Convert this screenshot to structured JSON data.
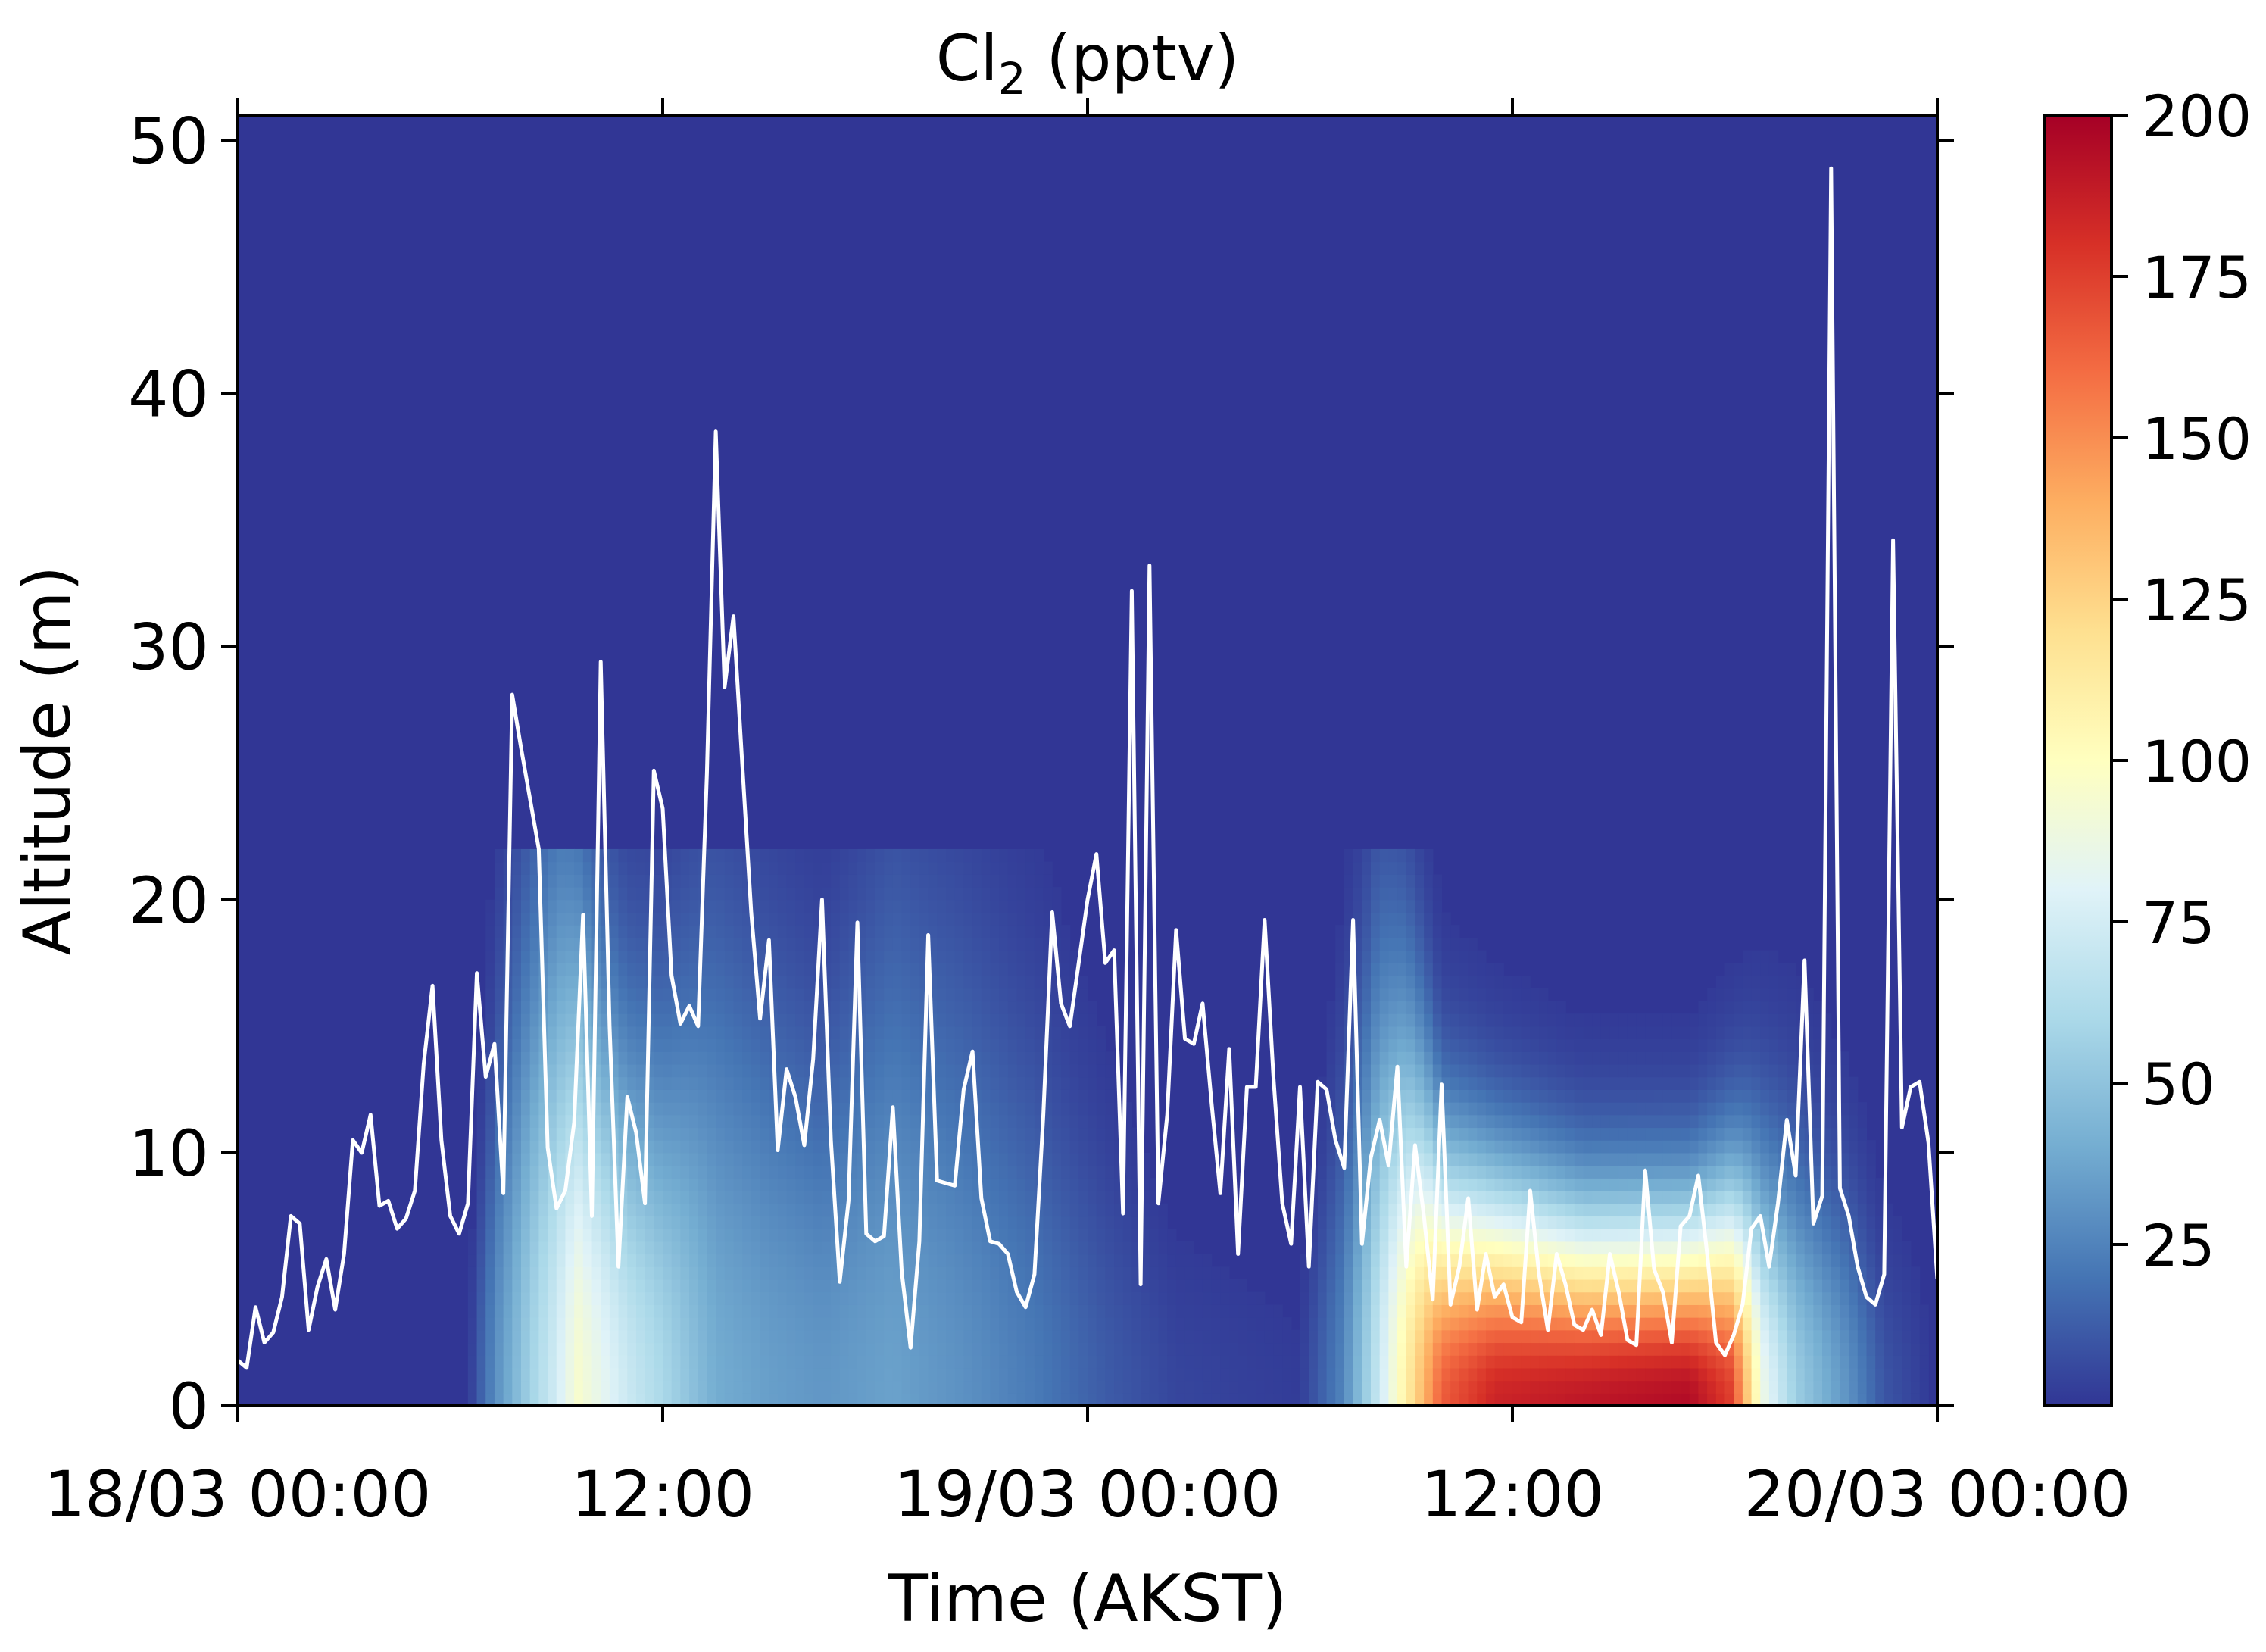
{
  "chart_data": {
    "type": "heatmap",
    "title": "Cl",
    "title_subscript": "2",
    "title_suffix": " (pptv)",
    "xlabel": "Time (AKST)",
    "ylabel": "Altitude (m)",
    "x_tick_labels": [
      "18/03 00:00",
      "12:00",
      "19/03 00:00",
      "12:00",
      "20/03 00:00"
    ],
    "x_ticks_hours": [
      0,
      12,
      24,
      36,
      48
    ],
    "xlim_hours": [
      0,
      48
    ],
    "ylim": [
      0,
      51
    ],
    "y_ticks": [
      0,
      10,
      20,
      30,
      40,
      50
    ],
    "colorbar": {
      "colormap": "RdYlBu_r",
      "range": [
        0,
        200
      ],
      "ticks": [
        25,
        50,
        75,
        100,
        125,
        150,
        175,
        200
      ],
      "colors": [
        "#313695",
        "#4575b4",
        "#74add1",
        "#abd9e9",
        "#e0f3f8",
        "#ffffbf",
        "#fee090",
        "#fdae61",
        "#f46d43",
        "#d73027",
        "#a50026"
      ]
    },
    "heatmap_columns": [
      {
        "t": 0.0,
        "v0": 0,
        "h": 5
      },
      {
        "t": 6.5,
        "v0": 0,
        "h": 5
      },
      {
        "t": 7.3,
        "v0": 30,
        "h": 14
      },
      {
        "t": 8.2,
        "v0": 55,
        "h": 18
      },
      {
        "t": 9.0,
        "v0": 75,
        "h": 20
      },
      {
        "t": 9.6,
        "v0": 95,
        "h": 18
      },
      {
        "t": 10.2,
        "v0": 85,
        "h": 16
      },
      {
        "t": 11.0,
        "v0": 72,
        "h": 14
      },
      {
        "t": 12.0,
        "v0": 60,
        "h": 14
      },
      {
        "t": 13.5,
        "v0": 40,
        "h": 18
      },
      {
        "t": 15.0,
        "v0": 35,
        "h": 16
      },
      {
        "t": 16.5,
        "v0": 32,
        "h": 14
      },
      {
        "t": 18.5,
        "v0": 36,
        "h": 19
      },
      {
        "t": 20.5,
        "v0": 30,
        "h": 17
      },
      {
        "t": 22.5,
        "v0": 22,
        "h": 14
      },
      {
        "t": 24.5,
        "v0": 12,
        "h": 10
      },
      {
        "t": 26.5,
        "v0": 5,
        "h": 6
      },
      {
        "t": 30.0,
        "v0": 2,
        "h": 5
      },
      {
        "t": 31.2,
        "v0": 25,
        "h": 12
      },
      {
        "t": 32.2,
        "v0": 70,
        "h": 16
      },
      {
        "t": 33.0,
        "v0": 110,
        "h": 14
      },
      {
        "t": 34.0,
        "v0": 165,
        "h": 9
      },
      {
        "t": 35.5,
        "v0": 185,
        "h": 8
      },
      {
        "t": 38.0,
        "v0": 190,
        "h": 7
      },
      {
        "t": 41.0,
        "v0": 195,
        "h": 7
      },
      {
        "t": 42.2,
        "v0": 175,
        "h": 8
      },
      {
        "t": 43.0,
        "v0": 90,
        "h": 9
      },
      {
        "t": 44.0,
        "v0": 55,
        "h": 9
      },
      {
        "t": 45.5,
        "v0": 30,
        "h": 8
      },
      {
        "t": 46.5,
        "v0": 10,
        "h": 6
      },
      {
        "t": 48.0,
        "v0": 0,
        "h": 5
      }
    ],
    "boundary_layer_height": {
      "name": "",
      "x_hours": [
        0.0,
        0.25,
        0.5,
        0.75,
        1.0,
        1.25,
        1.5,
        1.75,
        2.0,
        2.25,
        2.5,
        2.75,
        3.0,
        3.25,
        3.5,
        3.75,
        4.0,
        4.25,
        4.5,
        4.75,
        5.0,
        5.25,
        5.5,
        5.75,
        6.0,
        6.25,
        6.5,
        6.75,
        7.0,
        7.25,
        7.5,
        7.75,
        8.0,
        8.25,
        8.5,
        8.75,
        9.0,
        9.25,
        9.5,
        9.75,
        10.0,
        10.25,
        10.5,
        10.75,
        11.0,
        11.25,
        11.5,
        11.75,
        12.0,
        12.25,
        12.5,
        12.75,
        13.0,
        13.25,
        13.5,
        13.75,
        14.0,
        14.25,
        14.5,
        14.75,
        15.0,
        15.25,
        15.5,
        15.75,
        16.0,
        16.25,
        16.5,
        16.75,
        17.0,
        17.25,
        17.5,
        17.75,
        18.0,
        18.25,
        18.5,
        18.75,
        19.0,
        19.25,
        19.5,
        19.75,
        20.0,
        20.25,
        20.5,
        20.75,
        21.0,
        21.25,
        21.5,
        21.75,
        22.0,
        22.25,
        22.5,
        22.75,
        23.0,
        23.25,
        23.5,
        23.75,
        24.0,
        24.25,
        24.5,
        24.75,
        25.0,
        25.25,
        25.5,
        25.75,
        26.0,
        26.25,
        26.5,
        26.75,
        27.0,
        27.25,
        27.5,
        27.75,
        28.0,
        28.25,
        28.5,
        28.75,
        29.0,
        29.25,
        29.5,
        29.75,
        30.0,
        30.25,
        30.5,
        30.75,
        31.0,
        31.25,
        31.5,
        31.75,
        32.0,
        32.25,
        32.5,
        32.75,
        33.0,
        33.25,
        33.5,
        33.75,
        34.0,
        34.25,
        34.5,
        34.75,
        35.0,
        35.25,
        35.5,
        35.75,
        36.0,
        36.25,
        36.5,
        36.75,
        37.0,
        37.25,
        37.5,
        37.75,
        38.0,
        38.25,
        38.5,
        38.75,
        39.0,
        39.25,
        39.5,
        39.75,
        40.0,
        40.25,
        40.5,
        40.75,
        41.0,
        41.25,
        41.5,
        41.75,
        42.0,
        42.25,
        42.5,
        42.75,
        43.0,
        43.25,
        43.5,
        43.75,
        44.0,
        44.25,
        44.5,
        44.75,
        45.0,
        45.25,
        45.5,
        45.75,
        46.0,
        46.25,
        46.5,
        46.75,
        47.0,
        47.25,
        47.5,
        47.75,
        48.0
      ],
      "y_m": [
        1.8,
        1.5,
        3.9,
        2.5,
        2.9,
        4.3,
        7.5,
        7.2,
        3.0,
        4.7,
        5.8,
        3.8,
        6.0,
        10.5,
        10.0,
        11.5,
        7.9,
        8.1,
        7.0,
        7.4,
        8.5,
        13.5,
        16.6,
        10.5,
        7.5,
        6.8,
        8.0,
        17.1,
        13.0,
        14.3,
        8.4,
        28.1,
        26.0,
        24.0,
        22.0,
        10.2,
        7.8,
        8.5,
        11.2,
        19.4,
        7.5,
        29.4,
        15.0,
        5.5,
        12.2,
        10.8,
        8.0,
        25.1,
        23.6,
        17.0,
        15.1,
        15.8,
        15.0,
        25.0,
        38.5,
        28.4,
        31.2,
        25.3,
        19.5,
        15.3,
        18.4,
        10.1,
        13.3,
        12.2,
        10.3,
        13.7,
        20.0,
        10.5,
        4.9,
        8.1,
        19.1,
        6.8,
        6.5,
        6.7,
        11.8,
        5.3,
        2.3,
        6.5,
        18.6,
        8.9,
        8.8,
        8.7,
        12.5,
        14.0,
        8.2,
        6.5,
        6.4,
        6.0,
        4.5,
        3.9,
        5.2,
        11.5,
        19.5,
        15.9,
        15.0,
        17.5,
        20.0,
        21.8,
        17.5,
        18.0,
        7.6,
        32.2,
        4.8,
        33.2,
        8.0,
        11.5,
        18.8,
        14.5,
        14.3,
        15.9,
        12.0,
        8.4,
        14.1,
        6.0,
        12.6,
        12.6,
        19.2,
        13.0,
        8.0,
        6.4,
        12.6,
        5.5,
        12.8,
        12.5,
        10.5,
        9.4,
        19.2,
        6.4,
        9.8,
        11.3,
        9.5,
        13.4,
        5.5,
        10.3,
        7.5,
        4.2,
        12.7,
        4.0,
        5.5,
        8.2,
        3.8,
        6.0,
        4.3,
        4.8,
        3.5,
        3.3,
        8.5,
        5.2,
        3.0,
        6.0,
        4.8,
        3.2,
        3.0,
        3.8,
        2.8,
        6.0,
        4.5,
        2.6,
        2.4,
        9.3,
        5.4,
        4.5,
        2.5,
        7.1,
        7.5,
        9.1,
        6.0,
        2.5,
        2.0,
        2.8,
        4.0,
        7.0,
        7.5,
        5.5,
        8.0,
        11.3,
        9.1,
        17.6,
        7.2,
        8.3,
        48.9,
        8.6,
        7.5,
        5.5,
        4.3,
        4.0,
        5.2,
        34.2,
        11.0,
        12.6,
        12.8,
        10.4,
        5.0
      ]
    }
  }
}
